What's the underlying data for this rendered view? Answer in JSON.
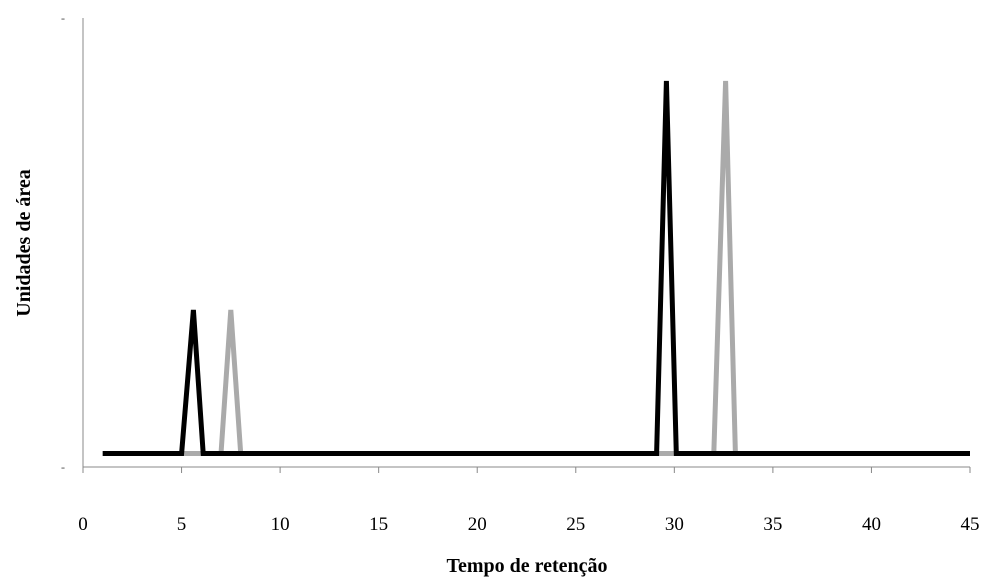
{
  "chart_data": {
    "type": "line",
    "xlabel": "Tempo de retenção",
    "ylabel": "Unidades de área",
    "xlim": [
      0,
      45
    ],
    "ylim": [
      0,
      1.0
    ],
    "x_ticks": [
      "0",
      "5",
      "10",
      "15",
      "20",
      "25",
      "30",
      "35",
      "40",
      "45"
    ],
    "y_ticks": [
      "-",
      "-"
    ],
    "grid": false,
    "legend": "none",
    "series": [
      {
        "color": "#aaaaaa",
        "x": [
          1,
          7,
          7.5,
          8,
          32,
          32.6,
          33.1,
          45
        ],
        "y": [
          0.03,
          0.03,
          0.35,
          0.03,
          0.03,
          0.86,
          0.03,
          0.03
        ]
      },
      {
        "color": "#000000",
        "x": [
          1,
          5,
          5.6,
          6.1,
          29.1,
          29.6,
          30.1,
          45
        ],
        "y": [
          0.03,
          0.03,
          0.35,
          0.03,
          0.03,
          0.86,
          0.03,
          0.03
        ]
      }
    ]
  }
}
